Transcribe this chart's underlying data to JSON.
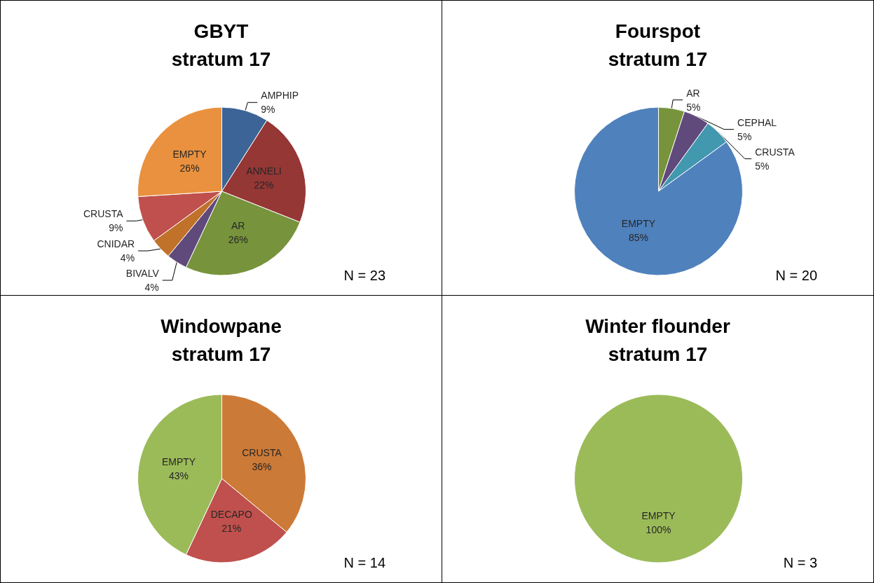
{
  "chart_data": [
    {
      "type": "pie",
      "title": "GBYT",
      "subtitle": "stratum 17",
      "annotations": [
        "N = 23"
      ],
      "categories": [
        "AMPHIP",
        "ANNELI",
        "AR",
        "BIVALV",
        "CNIDAR",
        "CRUSTA",
        "EMPTY"
      ],
      "values": [
        9,
        22,
        26,
        4,
        4,
        9,
        26
      ],
      "value_labels": [
        "9%",
        "22%",
        "26%",
        "4%",
        "4%",
        "9%",
        "26%"
      ],
      "colors": [
        "#3c6496",
        "#953735",
        "#77933c",
        "#604a7b",
        "#c0712a",
        "#c0504d",
        "#e9913e"
      ]
    },
    {
      "type": "pie",
      "title": "Fourspot",
      "subtitle": "stratum 17",
      "annotations": [
        "N = 20"
      ],
      "categories": [
        "AR",
        "CEPHAL",
        "CRUSTA",
        "EMPTY"
      ],
      "values": [
        5,
        5,
        5,
        85
      ],
      "value_labels": [
        "5%",
        "5%",
        "5%",
        "85%"
      ],
      "colors": [
        "#77933c",
        "#604a7b",
        "#4198af",
        "#4f81bd"
      ]
    },
    {
      "type": "pie",
      "title": "Windowpane",
      "subtitle": "stratum 17",
      "annotations": [
        "N = 14"
      ],
      "categories": [
        "CRUSTA",
        "DECAPO",
        "EMPTY"
      ],
      "values": [
        36,
        21,
        43
      ],
      "value_labels": [
        "36%",
        "21%",
        "43%"
      ],
      "colors": [
        "#cc7a37",
        "#c0504d",
        "#9bbb59"
      ]
    },
    {
      "type": "pie",
      "title": "Winter flounder",
      "subtitle": "stratum 17",
      "annotations": [
        "N = 3"
      ],
      "categories": [
        "EMPTY"
      ],
      "values": [
        100
      ],
      "value_labels": [
        "100%"
      ],
      "colors": [
        "#9bbb59"
      ]
    }
  ]
}
